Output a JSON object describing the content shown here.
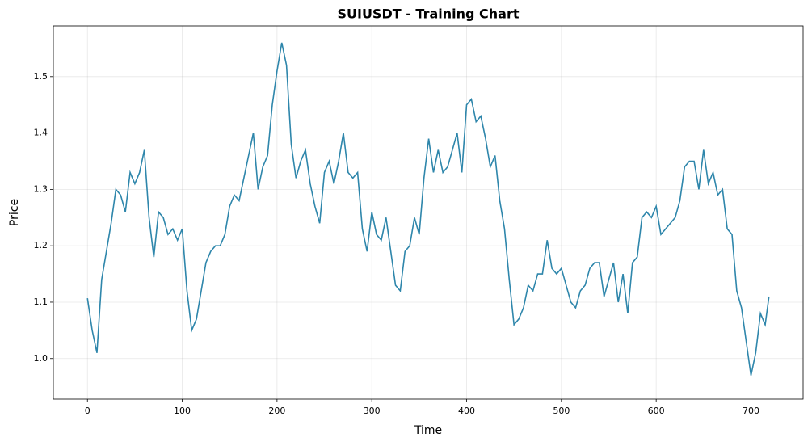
{
  "chart_data": {
    "type": "line",
    "title": "SUIUSDT - Training Chart",
    "x_label": "Time",
    "y_label": "Price",
    "x": [
      0,
      5,
      10,
      15,
      20,
      25,
      30,
      35,
      40,
      45,
      50,
      55,
      60,
      65,
      70,
      75,
      80,
      85,
      90,
      95,
      100,
      105,
      110,
      115,
      120,
      125,
      130,
      135,
      140,
      145,
      150,
      155,
      160,
      165,
      170,
      175,
      180,
      185,
      190,
      195,
      200,
      205,
      210,
      215,
      220,
      225,
      230,
      235,
      240,
      245,
      250,
      255,
      260,
      265,
      270,
      275,
      280,
      285,
      290,
      295,
      300,
      305,
      310,
      315,
      320,
      325,
      330,
      335,
      340,
      345,
      350,
      355,
      360,
      365,
      370,
      375,
      380,
      385,
      390,
      395,
      400,
      405,
      410,
      415,
      420,
      425,
      430,
      435,
      440,
      445,
      450,
      455,
      460,
      465,
      470,
      475,
      480,
      485,
      490,
      495,
      500,
      505,
      510,
      515,
      520,
      525,
      530,
      535,
      540,
      545,
      550,
      555,
      560,
      565,
      570,
      575,
      580,
      585,
      590,
      595,
      600,
      605,
      610,
      615,
      620,
      625,
      630,
      635,
      640,
      645,
      650,
      655,
      660,
      665,
      670,
      675,
      680,
      685,
      690,
      695,
      700,
      705,
      710,
      715,
      719
    ],
    "series": [
      {
        "name": "SUIUSDT",
        "color": "#2e86ab",
        "values": [
          1.107,
          1.05,
          1.01,
          1.14,
          1.19,
          1.24,
          1.3,
          1.29,
          1.26,
          1.33,
          1.31,
          1.33,
          1.37,
          1.25,
          1.18,
          1.26,
          1.25,
          1.22,
          1.23,
          1.21,
          1.23,
          1.12,
          1.05,
          1.07,
          1.12,
          1.17,
          1.19,
          1.2,
          1.2,
          1.22,
          1.27,
          1.29,
          1.28,
          1.32,
          1.36,
          1.4,
          1.3,
          1.34,
          1.36,
          1.45,
          1.51,
          1.56,
          1.52,
          1.38,
          1.32,
          1.35,
          1.37,
          1.31,
          1.27,
          1.24,
          1.33,
          1.35,
          1.31,
          1.35,
          1.4,
          1.33,
          1.32,
          1.33,
          1.23,
          1.19,
          1.26,
          1.22,
          1.21,
          1.25,
          1.19,
          1.13,
          1.12,
          1.19,
          1.2,
          1.25,
          1.22,
          1.32,
          1.39,
          1.33,
          1.37,
          1.33,
          1.34,
          1.37,
          1.4,
          1.33,
          1.45,
          1.46,
          1.42,
          1.43,
          1.39,
          1.34,
          1.36,
          1.28,
          1.23,
          1.14,
          1.06,
          1.07,
          1.09,
          1.13,
          1.12,
          1.15,
          1.15,
          1.21,
          1.16,
          1.15,
          1.16,
          1.13,
          1.1,
          1.09,
          1.12,
          1.13,
          1.16,
          1.17,
          1.17,
          1.11,
          1.14,
          1.17,
          1.1,
          1.15,
          1.08,
          1.17,
          1.18,
          1.25,
          1.26,
          1.25,
          1.27,
          1.22,
          1.23,
          1.24,
          1.25,
          1.28,
          1.34,
          1.35,
          1.35,
          1.3,
          1.37,
          1.31,
          1.33,
          1.29,
          1.3,
          1.23,
          1.22,
          1.12,
          1.09,
          1.03,
          0.97,
          1.01,
          1.08,
          1.06,
          1.11
        ]
      }
    ],
    "xlim": [
      -36,
      755
    ],
    "ylim": [
      0.928,
      1.59
    ],
    "xticks": [
      0,
      100,
      200,
      300,
      400,
      500,
      600,
      700
    ],
    "yticks": [
      {
        "value": 1,
        "label": "1.0"
      },
      1.1,
      1.2,
      1.3,
      1.4,
      1.5
    ],
    "grid": true
  }
}
